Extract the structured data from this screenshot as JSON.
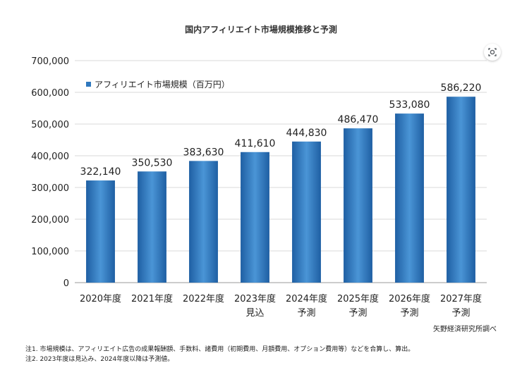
{
  "chart_data": {
    "type": "bar",
    "title": "国内アフィリエイト市場規模推移と予測",
    "categories": [
      [
        "2020年度"
      ],
      [
        "2021年度"
      ],
      [
        "2022年度"
      ],
      [
        "2023年度",
        "見込"
      ],
      [
        "2024年度",
        "予測"
      ],
      [
        "2025年度",
        "予測"
      ],
      [
        "2026年度",
        "予測"
      ],
      [
        "2027年度",
        "予測"
      ]
    ],
    "series": [
      {
        "name": "アフィリエイト市場規模（百万円）",
        "values": [
          322140,
          350530,
          383630,
          411610,
          444830,
          486470,
          533080,
          586220
        ]
      }
    ],
    "data_labels": [
      "322,140",
      "350,530",
      "383,630",
      "411,610",
      "444,830",
      "486,470",
      "533,080",
      "586,220"
    ],
    "ylim": [
      0,
      700000
    ],
    "yticks": [
      "0",
      "100,000",
      "200,000",
      "300,000",
      "400,000",
      "500,000",
      "600,000",
      "700,000"
    ],
    "xlabel": "",
    "ylabel": "",
    "grid": true,
    "legend_position": "top-left",
    "bar_color": "#2f78be",
    "source": "矢野経済研究所調べ"
  },
  "notes": [
    "注1.  市場規模は、アフィリエイト広告の成果報酬額、手数料、諸費用（初期費用、月額費用、オプション費用等）などを合算し、算出。",
    "注2.  2023年度は見込み、2024年度以降は予測値。"
  ],
  "lens_icon": "lens-icon"
}
